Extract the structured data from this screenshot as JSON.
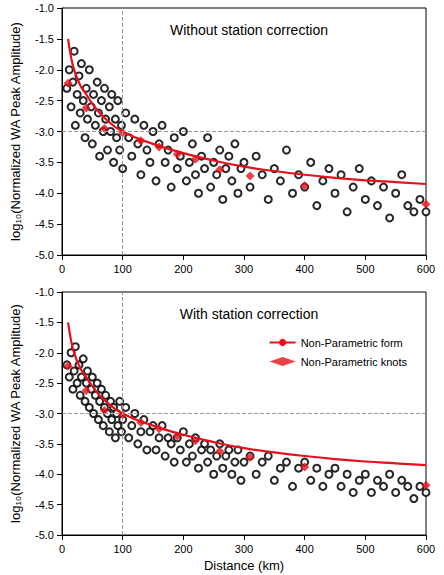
{
  "chart_data": [
    {
      "type": "scatter",
      "title": "Without station correction",
      "x_label": "",
      "y_label": "log₁₀(Normalized WA Peak Amplitude)",
      "xlim": [
        0,
        600
      ],
      "xticks": [
        0,
        100,
        200,
        300,
        400,
        500,
        600
      ],
      "ylim": [
        -5,
        -1
      ],
      "yticks": [
        {
          "value": -5,
          "label": "-5.0"
        },
        -4.5,
        {
          "value": -4,
          "label": "-4.0"
        },
        -3.5,
        {
          "value": -3,
          "label": "-3.0"
        },
        -2.5,
        {
          "value": -2,
          "label": "-2.0"
        },
        -1.5,
        {
          "value": -1,
          "label": "-1.0"
        }
      ],
      "grid": false,
      "reference_lines": [
        {
          "axis": "x",
          "value": 100
        },
        {
          "axis": "y",
          "value": -3
        }
      ],
      "series": [
        {
          "type": "scatter",
          "marker": "circle-open",
          "color": "#000000",
          "x": [
            8,
            12,
            15,
            18,
            20,
            22,
            25,
            28,
            30,
            32,
            35,
            38,
            40,
            42,
            45,
            48,
            50,
            52,
            55,
            58,
            60,
            62,
            65,
            68,
            70,
            72,
            75,
            78,
            80,
            82,
            85,
            88,
            90,
            92,
            95,
            98,
            100,
            105,
            110,
            115,
            120,
            125,
            130,
            135,
            140,
            145,
            150,
            155,
            160,
            165,
            170,
            175,
            180,
            185,
            190,
            195,
            200,
            205,
            210,
            215,
            220,
            225,
            230,
            235,
            240,
            245,
            250,
            255,
            260,
            265,
            270,
            275,
            280,
            285,
            290,
            295,
            300,
            310,
            320,
            330,
            340,
            350,
            360,
            370,
            380,
            390,
            400,
            410,
            420,
            430,
            440,
            450,
            460,
            470,
            480,
            490,
            500,
            510,
            520,
            530,
            540,
            550,
            560,
            570,
            580,
            590,
            600
          ],
          "values": [
            -2.3,
            -2.0,
            -2.6,
            -2.2,
            -1.7,
            -2.9,
            -2.4,
            -2.1,
            -2.7,
            -1.9,
            -2.5,
            -3.1,
            -2.3,
            -2.8,
            -2.0,
            -2.6,
            -3.2,
            -2.4,
            -2.9,
            -2.2,
            -2.7,
            -3.4,
            -2.5,
            -3.0,
            -2.3,
            -2.8,
            -3.3,
            -2.6,
            -3.0,
            -2.4,
            -3.5,
            -2.8,
            -3.1,
            -2.5,
            -3.3,
            -2.9,
            -3.6,
            -2.7,
            -3.1,
            -3.4,
            -2.8,
            -3.2,
            -3.7,
            -2.9,
            -3.3,
            -3.5,
            -3.0,
            -3.8,
            -3.2,
            -2.9,
            -3.5,
            -3.3,
            -3.9,
            -3.1,
            -3.6,
            -3.4,
            -3.0,
            -3.8,
            -3.5,
            -3.2,
            -3.7,
            -4.0,
            -3.4,
            -3.6,
            -3.1,
            -3.9,
            -3.5,
            -3.7,
            -3.3,
            -4.1,
            -3.6,
            -3.4,
            -3.8,
            -3.2,
            -4.0,
            -3.6,
            -3.5,
            -3.9,
            -3.4,
            -3.7,
            -4.1,
            -3.6,
            -3.8,
            -3.3,
            -4.0,
            -3.7,
            -3.9,
            -3.5,
            -4.2,
            -3.8,
            -3.6,
            -4.0,
            -3.7,
            -4.3,
            -3.9,
            -3.6,
            -4.1,
            -3.8,
            -4.2,
            -3.9,
            -4.4,
            -4.0,
            -3.7,
            -4.2,
            -4.3,
            -4.1,
            -4.3
          ]
        },
        {
          "type": "line",
          "name": "Non-Parametric form",
          "color": "#e8101a",
          "line_style": "solid",
          "marker": "none",
          "x": [
            10,
            15,
            20,
            30,
            40,
            50,
            70,
            100,
            150,
            200,
            250,
            300,
            350,
            400,
            450,
            500,
            550,
            600
          ],
          "values": [
            -1.5,
            -1.8,
            -2.0,
            -2.25,
            -2.4,
            -2.55,
            -2.78,
            -3.0,
            -3.2,
            -3.35,
            -3.47,
            -3.57,
            -3.64,
            -3.7,
            -3.75,
            -3.79,
            -3.82,
            -3.85
          ]
        },
        {
          "type": "scatter",
          "name": "Non-Parametric knots",
          "color": "#e8101a",
          "marker": "diamond",
          "x": [
            10,
            40,
            70,
            100,
            130,
            160,
            190,
            220,
            260,
            310,
            400,
            600
          ],
          "values": [
            -2.22,
            -2.62,
            -2.95,
            -3.02,
            -3.15,
            -3.25,
            -3.37,
            -3.45,
            -3.62,
            -3.72,
            -3.88,
            -4.18
          ]
        }
      ]
    },
    {
      "type": "scatter",
      "title": "With station correction",
      "x_label": "Distance (km)",
      "y_label": "log₁₀(Normalized WA Peak Amplitude)",
      "xlim": [
        0,
        600
      ],
      "xticks": [
        0,
        100,
        200,
        300,
        400,
        500,
        600
      ],
      "ylim": [
        -5,
        -1
      ],
      "yticks": [
        {
          "value": -5,
          "label": "-5.0"
        },
        -4.5,
        {
          "value": -4,
          "label": "-4.0"
        },
        -3.5,
        {
          "value": -3,
          "label": "-3.0"
        },
        -2.5,
        {
          "value": -2,
          "label": "-2.0"
        },
        -1.5,
        {
          "value": -1,
          "label": "-1.0"
        }
      ],
      "grid": false,
      "legend": "upper right",
      "reference_lines": [
        {
          "axis": "x",
          "value": 100
        },
        {
          "axis": "y",
          "value": -3
        }
      ],
      "series": [
        {
          "type": "scatter",
          "marker": "circle-open",
          "color": "#000000",
          "x": [
            8,
            12,
            15,
            18,
            20,
            22,
            25,
            28,
            30,
            32,
            35,
            38,
            40,
            42,
            45,
            48,
            50,
            52,
            55,
            58,
            60,
            62,
            65,
            68,
            70,
            72,
            75,
            78,
            80,
            82,
            85,
            88,
            90,
            92,
            95,
            98,
            100,
            105,
            110,
            115,
            120,
            125,
            130,
            135,
            140,
            145,
            150,
            155,
            160,
            165,
            170,
            175,
            180,
            185,
            190,
            195,
            200,
            205,
            210,
            215,
            220,
            225,
            230,
            235,
            240,
            245,
            250,
            255,
            260,
            265,
            270,
            275,
            280,
            285,
            290,
            295,
            300,
            310,
            320,
            330,
            340,
            350,
            360,
            370,
            380,
            390,
            400,
            410,
            420,
            430,
            440,
            450,
            460,
            470,
            480,
            490,
            500,
            510,
            520,
            530,
            540,
            550,
            560,
            570,
            580,
            590,
            600
          ],
          "values": [
            -2.2,
            -2.4,
            -2.0,
            -2.6,
            -2.3,
            -1.9,
            -2.5,
            -2.2,
            -2.7,
            -2.4,
            -2.1,
            -2.8,
            -2.5,
            -2.3,
            -2.9,
            -2.6,
            -2.4,
            -3.0,
            -2.7,
            -2.5,
            -3.1,
            -2.8,
            -2.6,
            -3.2,
            -2.9,
            -2.7,
            -3.0,
            -3.3,
            -2.8,
            -3.1,
            -2.9,
            -3.4,
            -3.0,
            -3.2,
            -2.8,
            -3.3,
            -3.1,
            -2.9,
            -3.4,
            -3.2,
            -3.0,
            -3.5,
            -3.3,
            -3.1,
            -3.6,
            -3.3,
            -3.2,
            -3.6,
            -3.4,
            -3.2,
            -3.7,
            -3.4,
            -3.5,
            -3.8,
            -3.4,
            -3.6,
            -3.3,
            -3.8,
            -3.5,
            -3.7,
            -3.4,
            -3.9,
            -3.6,
            -3.5,
            -3.8,
            -3.6,
            -4.0,
            -3.7,
            -3.5,
            -3.9,
            -3.7,
            -3.6,
            -4.0,
            -3.8,
            -3.6,
            -4.1,
            -3.8,
            -3.7,
            -4.0,
            -3.8,
            -3.7,
            -4.1,
            -3.9,
            -3.8,
            -4.2,
            -3.9,
            -3.8,
            -4.1,
            -3.9,
            -4.2,
            -4.0,
            -3.9,
            -4.2,
            -4.0,
            -4.3,
            -4.1,
            -4.0,
            -4.3,
            -4.1,
            -4.2,
            -4.0,
            -4.3,
            -4.1,
            -4.2,
            -4.4,
            -4.2,
            -4.3
          ]
        },
        {
          "type": "line",
          "name": "Non-Parametric form",
          "color": "#e8101a",
          "line_style": "solid",
          "marker": "none",
          "x": [
            10,
            15,
            20,
            30,
            40,
            50,
            70,
            100,
            150,
            200,
            250,
            300,
            350,
            400,
            450,
            500,
            550,
            600
          ],
          "values": [
            -1.5,
            -1.8,
            -2.0,
            -2.25,
            -2.4,
            -2.55,
            -2.78,
            -3.0,
            -3.2,
            -3.35,
            -3.47,
            -3.57,
            -3.64,
            -3.7,
            -3.75,
            -3.79,
            -3.82,
            -3.85
          ]
        },
        {
          "type": "scatter",
          "name": "Non-Parametric knots",
          "color": "#e8101a",
          "marker": "diamond",
          "x": [
            10,
            40,
            70,
            100,
            130,
            160,
            190,
            220,
            260,
            310,
            400,
            600
          ],
          "values": [
            -2.22,
            -2.62,
            -2.95,
            -3.02,
            -3.15,
            -3.25,
            -3.37,
            -3.45,
            -3.62,
            -3.72,
            -3.88,
            -4.18
          ]
        }
      ]
    }
  ]
}
